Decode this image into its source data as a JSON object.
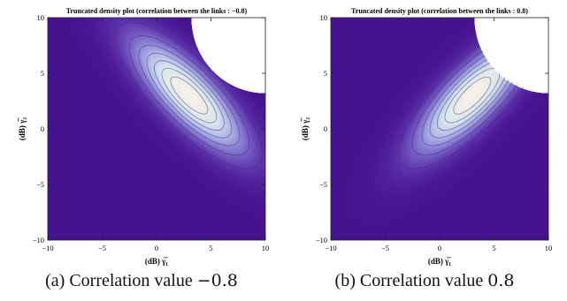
{
  "chart_data": [
    {
      "type": "heatmap",
      "title": "Truncated density plot (correlation between the links : −0.8)",
      "xlabel": "(dB) γ̅₁",
      "ylabel": "(dB) γ̅₂",
      "xlim": [
        -10,
        10
      ],
      "ylim": [
        -10,
        10
      ],
      "xticks": [
        "−10",
        "−5",
        "0",
        "5",
        "10"
      ],
      "yticks": [
        "−10",
        "−5",
        "0",
        "5",
        "10"
      ],
      "correlation": -0.8,
      "peak": [
        3,
        3
      ],
      "truncation_center": [
        10,
        10
      ],
      "truncation_radius": 6.8,
      "contour_levels": 7,
      "grid": false,
      "colors": {
        "background": "#46138f",
        "peak": "#f7f0e6"
      },
      "caption_prefix": "(a) Correlation value ",
      "caption_value": "−0.8"
    },
    {
      "type": "heatmap",
      "title": "Truncated density plot (correlation between the links : 0.8)",
      "xlabel": "(dB) γ̅₁",
      "ylabel": "(dB) γ̅₂",
      "xlim": [
        -10,
        10
      ],
      "ylim": [
        -10,
        10
      ],
      "xticks": [
        "−10",
        "−5",
        "0",
        "5",
        "10"
      ],
      "yticks": [
        "−10",
        "−5",
        "0",
        "5",
        "10"
      ],
      "correlation": 0.8,
      "peak": [
        3,
        3
      ],
      "truncation_center": [
        10,
        10
      ],
      "truncation_radius": 6.8,
      "contour_levels": 7,
      "grid": false,
      "colors": {
        "background": "#46138f",
        "peak": "#f7f0e6"
      },
      "caption_prefix": "(b) Correlation value ",
      "caption_value": "0.8"
    }
  ]
}
